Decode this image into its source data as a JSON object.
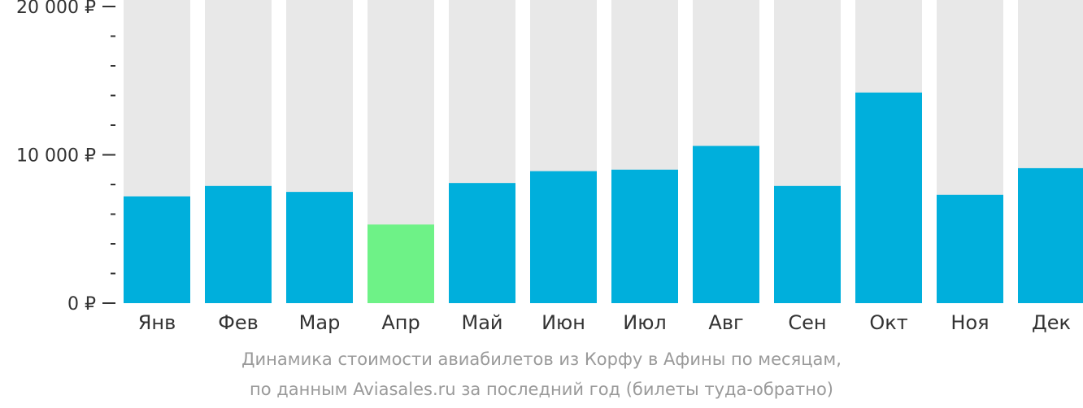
{
  "chart_data": {
    "type": "bar",
    "categories": [
      "Янв",
      "Фев",
      "Мар",
      "Апр",
      "Май",
      "Июн",
      "Июл",
      "Авг",
      "Сен",
      "Окт",
      "Ноя",
      "Дек"
    ],
    "values": [
      7200,
      7900,
      7500,
      5300,
      8100,
      8900,
      9000,
      10600,
      7900,
      14200,
      7300,
      9100
    ],
    "ylim": [
      0,
      20000
    ],
    "yticks": [
      {
        "value": 0,
        "label": "0 ₽"
      },
      {
        "value": 10000,
        "label": "10 000 ₽"
      },
      {
        "value": 20000,
        "label": "20 000 ₽"
      }
    ],
    "minor_tick_step": 2000,
    "highlight_index": 3,
    "grid": false,
    "colors": {
      "bar": "#00afdc",
      "highlight": "#6ef287",
      "background_bar": "#e8e8e8",
      "axis": "#333333"
    }
  },
  "caption": {
    "line1": "Динамика стоимости авиабилетов из Корфу в Афины по месяцам,",
    "line2": "по данным Aviasales.ru за последний год (билеты туда-обратно)"
  }
}
